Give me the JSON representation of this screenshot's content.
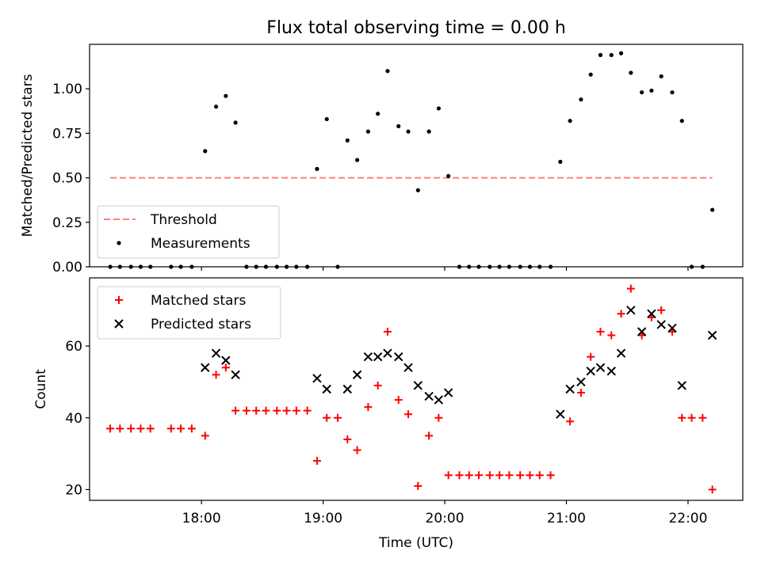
{
  "title": "Flux total observing time = 0.00 h",
  "xlabel": "Time (UTC)",
  "colors": {
    "threshold": "#ff7f7f",
    "measurements": "#000000",
    "matched": "#ff0000",
    "predicted": "#000000"
  },
  "chart_data": [
    {
      "type": "scatter",
      "panel": "top",
      "title": "Flux total observing time = 0.00 h",
      "ylabel": "Matched/Predicted stars",
      "xlabel": "",
      "xlim_hours": [
        17.08,
        22.45
      ],
      "ylim": [
        0,
        1.25
      ],
      "yticks": [
        0.0,
        0.25,
        0.5,
        0.75,
        1.0
      ],
      "ytick_labels": [
        "0.00",
        "0.25",
        "0.50",
        "0.75",
        "1.00"
      ],
      "xticks": [
        18,
        19,
        20,
        21,
        22
      ],
      "grid": false,
      "legend": {
        "placement": "lower-left",
        "entries": [
          "Threshold",
          "Measurements"
        ]
      },
      "series": [
        {
          "name": "Threshold",
          "kind": "dashed-line",
          "color": "#ff7f7f",
          "points": [
            [
              17.25,
              0.5
            ],
            [
              22.2,
              0.5
            ]
          ]
        },
        {
          "name": "Measurements",
          "kind": "dot",
          "color": "#000000",
          "points": [
            [
              17.25,
              0
            ],
            [
              17.33,
              0
            ],
            [
              17.42,
              0
            ],
            [
              17.5,
              0
            ],
            [
              17.58,
              0
            ],
            [
              17.75,
              0
            ],
            [
              17.83,
              0
            ],
            [
              17.92,
              0
            ],
            [
              18.03,
              0.65
            ],
            [
              18.12,
              0.9
            ],
            [
              18.2,
              0.96
            ],
            [
              18.28,
              0.81
            ],
            [
              18.37,
              0
            ],
            [
              18.45,
              0
            ],
            [
              18.53,
              0
            ],
            [
              18.62,
              0
            ],
            [
              18.7,
              0
            ],
            [
              18.78,
              0
            ],
            [
              18.87,
              0
            ],
            [
              18.95,
              0.55
            ],
            [
              19.03,
              0.83
            ],
            [
              19.12,
              0
            ],
            [
              19.2,
              0.71
            ],
            [
              19.28,
              0.6
            ],
            [
              19.37,
              0.76
            ],
            [
              19.45,
              0.86
            ],
            [
              19.53,
              1.1
            ],
            [
              19.62,
              0.79
            ],
            [
              19.7,
              0.76
            ],
            [
              19.78,
              0.43
            ],
            [
              19.87,
              0.76
            ],
            [
              19.95,
              0.89
            ],
            [
              20.03,
              0.51
            ],
            [
              20.12,
              0
            ],
            [
              20.2,
              0
            ],
            [
              20.28,
              0
            ],
            [
              20.37,
              0
            ],
            [
              20.45,
              0
            ],
            [
              20.53,
              0
            ],
            [
              20.62,
              0
            ],
            [
              20.7,
              0
            ],
            [
              20.78,
              0
            ],
            [
              20.87,
              0
            ],
            [
              20.95,
              0.59
            ],
            [
              21.03,
              0.82
            ],
            [
              21.12,
              0.94
            ],
            [
              21.2,
              1.08
            ],
            [
              21.28,
              1.19
            ],
            [
              21.37,
              1.19
            ],
            [
              21.45,
              1.2
            ],
            [
              21.53,
              1.09
            ],
            [
              21.62,
              0.98
            ],
            [
              21.7,
              0.99
            ],
            [
              21.78,
              1.07
            ],
            [
              21.87,
              0.98
            ],
            [
              21.95,
              0.82
            ],
            [
              22.03,
              0
            ],
            [
              22.12,
              0
            ],
            [
              22.2,
              0.32
            ]
          ]
        }
      ]
    },
    {
      "type": "scatter",
      "panel": "bottom",
      "title": "",
      "ylabel": "Count",
      "xlabel": "Time (UTC)",
      "xlim_hours": [
        17.08,
        22.45
      ],
      "ylim": [
        17,
        79
      ],
      "yticks": [
        20,
        40,
        60
      ],
      "ytick_labels": [
        "20",
        "40",
        "60"
      ],
      "xticks": [
        18,
        19,
        20,
        21,
        22
      ],
      "xtick_labels": [
        "18:00",
        "19:00",
        "20:00",
        "21:00",
        "22:00"
      ],
      "grid": false,
      "legend": {
        "placement": "upper-left",
        "entries": [
          "Matched stars",
          "Predicted stars"
        ]
      },
      "series": [
        {
          "name": "Matched stars",
          "kind": "plus",
          "color": "#ff0000",
          "points": [
            [
              17.25,
              37
            ],
            [
              17.33,
              37
            ],
            [
              17.42,
              37
            ],
            [
              17.5,
              37
            ],
            [
              17.58,
              37
            ],
            [
              17.75,
              37
            ],
            [
              17.83,
              37
            ],
            [
              17.92,
              37
            ],
            [
              18.03,
              35
            ],
            [
              18.12,
              52
            ],
            [
              18.2,
              54
            ],
            [
              18.28,
              42
            ],
            [
              18.37,
              42
            ],
            [
              18.45,
              42
            ],
            [
              18.53,
              42
            ],
            [
              18.62,
              42
            ],
            [
              18.7,
              42
            ],
            [
              18.78,
              42
            ],
            [
              18.87,
              42
            ],
            [
              18.95,
              28
            ],
            [
              19.03,
              40
            ],
            [
              19.12,
              40
            ],
            [
              19.2,
              34
            ],
            [
              19.28,
              31
            ],
            [
              19.37,
              43
            ],
            [
              19.45,
              49
            ],
            [
              19.53,
              64
            ],
            [
              19.62,
              45
            ],
            [
              19.7,
              41
            ],
            [
              19.78,
              21
            ],
            [
              19.87,
              35
            ],
            [
              19.95,
              40
            ],
            [
              20.03,
              24
            ],
            [
              20.12,
              24
            ],
            [
              20.2,
              24
            ],
            [
              20.28,
              24
            ],
            [
              20.37,
              24
            ],
            [
              20.45,
              24
            ],
            [
              20.53,
              24
            ],
            [
              20.62,
              24
            ],
            [
              20.7,
              24
            ],
            [
              20.78,
              24
            ],
            [
              20.87,
              24
            ],
            [
              21.03,
              39
            ],
            [
              21.12,
              47
            ],
            [
              21.2,
              57
            ],
            [
              21.28,
              64
            ],
            [
              21.37,
              63
            ],
            [
              21.45,
              69
            ],
            [
              21.53,
              76
            ],
            [
              21.62,
              63
            ],
            [
              21.7,
              68
            ],
            [
              21.78,
              70
            ],
            [
              21.87,
              64
            ],
            [
              21.95,
              40
            ],
            [
              22.03,
              40
            ],
            [
              22.12,
              40
            ],
            [
              22.2,
              20
            ]
          ]
        },
        {
          "name": "Predicted stars",
          "kind": "x",
          "color": "#000000",
          "points": [
            [
              18.03,
              54
            ],
            [
              18.12,
              58
            ],
            [
              18.2,
              56
            ],
            [
              18.28,
              52
            ],
            [
              18.95,
              51
            ],
            [
              19.03,
              48
            ],
            [
              19.2,
              48
            ],
            [
              19.28,
              52
            ],
            [
              19.37,
              57
            ],
            [
              19.45,
              57
            ],
            [
              19.53,
              58
            ],
            [
              19.62,
              57
            ],
            [
              19.7,
              54
            ],
            [
              19.78,
              49
            ],
            [
              19.87,
              46
            ],
            [
              19.95,
              45
            ],
            [
              20.03,
              47
            ],
            [
              20.95,
              41
            ],
            [
              21.03,
              48
            ],
            [
              21.12,
              50
            ],
            [
              21.2,
              53
            ],
            [
              21.28,
              54
            ],
            [
              21.37,
              53
            ],
            [
              21.45,
              58
            ],
            [
              21.53,
              70
            ],
            [
              21.62,
              64
            ],
            [
              21.7,
              69
            ],
            [
              21.78,
              66
            ],
            [
              21.87,
              65
            ],
            [
              21.95,
              49
            ],
            [
              22.2,
              63
            ]
          ]
        }
      ]
    }
  ]
}
